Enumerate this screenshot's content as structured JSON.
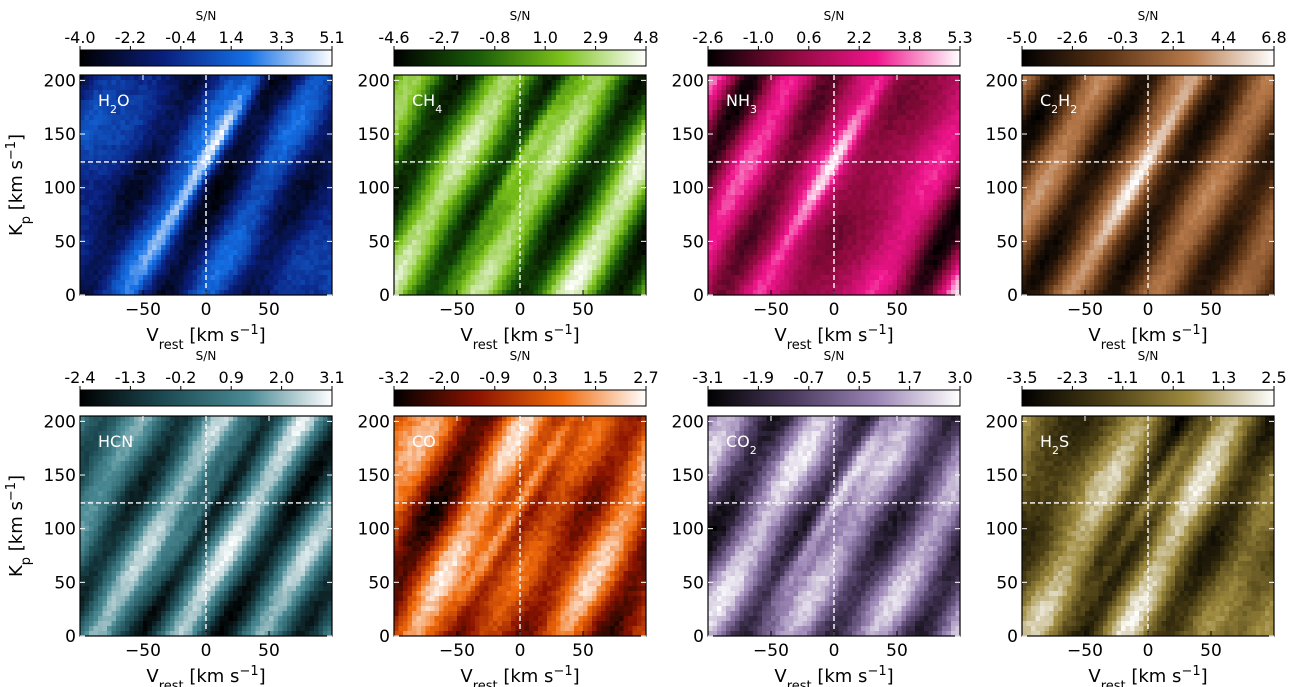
{
  "chart_data": {
    "type": "heatmap",
    "colorbar_label": "S/N",
    "xlabel_main": "V",
    "xlabel_sub": "rest",
    "xlabel_unit": " [km s",
    "xlabel_exp": "−1",
    "xlabel_close": "]",
    "ylabel_main": "K",
    "ylabel_sub": "p",
    "ylabel_unit": " [km s",
    "ylabel_exp": "−1",
    "ylabel_close": "]",
    "xlim": [
      -100,
      100
    ],
    "ylim": [
      0,
      205
    ],
    "xticks": [
      -50,
      0,
      50
    ],
    "xtick_labels": [
      "−50",
      "0",
      "50"
    ],
    "yticks": [
      0,
      50,
      100,
      150,
      200
    ],
    "ytick_labels": [
      "0",
      "50",
      "100",
      "150",
      "200"
    ],
    "expected_position": {
      "v_rest": 0,
      "k_p": 124
    },
    "panels": [
      {
        "species": "H2O",
        "label_parts": [
          [
            "H",
            ""
          ],
          [
            "2",
            "sub"
          ],
          [
            "O",
            ""
          ]
        ],
        "colormap": [
          "#000000",
          "#0a1f7d",
          "#1470e6",
          "#ffffff"
        ],
        "colorbar_ticks": [
          "-4.0",
          "-2.2",
          "-0.4",
          "1.4",
          "3.3",
          "5.1"
        ],
        "vmin": -4.0,
        "vmax": 5.1,
        "peak_sn": 5.1
      },
      {
        "species": "CH4",
        "label_parts": [
          [
            "CH",
            ""
          ],
          [
            "4",
            "sub"
          ]
        ],
        "colormap": [
          "#000000",
          "#1a5c08",
          "#7cc21a",
          "#ffffff"
        ],
        "colorbar_ticks": [
          "-4.6",
          "-2.7",
          "-0.8",
          "1.0",
          "2.9",
          "4.8"
        ],
        "vmin": -4.6,
        "vmax": 4.8,
        "peak_sn": 4.8
      },
      {
        "species": "NH3",
        "label_parts": [
          [
            "NH",
            ""
          ],
          [
            "3",
            "sub"
          ]
        ],
        "colormap": [
          "#000000",
          "#8c0a3c",
          "#f0148c",
          "#ffffff"
        ],
        "colorbar_ticks": [
          "-2.6",
          "-1.0",
          "0.6",
          "2.2",
          "3.8",
          "5.3"
        ],
        "vmin": -2.6,
        "vmax": 5.3,
        "peak_sn": 5.3
      },
      {
        "species": "C2H2",
        "label_parts": [
          [
            "C",
            ""
          ],
          [
            "2",
            "sub"
          ],
          [
            "H",
            ""
          ],
          [
            "2",
            "sub"
          ]
        ],
        "colormap": [
          "#000000",
          "#5a3214",
          "#b87a4a",
          "#ffffff"
        ],
        "colorbar_ticks": [
          "-5.0",
          "-2.6",
          "-0.3",
          "2.1",
          "4.4",
          "6.8"
        ],
        "vmin": -5.0,
        "vmax": 6.8,
        "peak_sn": 6.8
      },
      {
        "species": "HCN",
        "label_parts": [
          [
            "HCN",
            ""
          ]
        ],
        "colormap": [
          "#000000",
          "#1c4a52",
          "#4a8a94",
          "#ffffff"
        ],
        "colorbar_ticks": [
          "-2.4",
          "-1.3",
          "-0.2",
          "0.9",
          "2.0",
          "3.1"
        ],
        "vmin": -2.4,
        "vmax": 3.1,
        "peak_sn": 3.1
      },
      {
        "species": "CO",
        "label_parts": [
          [
            "CO",
            ""
          ]
        ],
        "colormap": [
          "#000000",
          "#8c1400",
          "#f06a0a",
          "#ffffff"
        ],
        "colorbar_ticks": [
          "-3.2",
          "-2.0",
          "-0.9",
          "0.3",
          "1.5",
          "2.7"
        ],
        "vmin": -3.2,
        "vmax": 2.7,
        "peak_sn": 2.7
      },
      {
        "species": "CO2",
        "label_parts": [
          [
            "CO",
            ""
          ],
          [
            "2",
            "sub"
          ]
        ],
        "colormap": [
          "#000000",
          "#4a3a5e",
          "#9a84b4",
          "#ffffff"
        ],
        "colorbar_ticks": [
          "-3.1",
          "-1.9",
          "-0.7",
          "0.5",
          "1.7",
          "3.0"
        ],
        "vmin": -3.1,
        "vmax": 3.0,
        "peak_sn": 3.0
      },
      {
        "species": "H2S",
        "label_parts": [
          [
            "H",
            ""
          ],
          [
            "2",
            "sub"
          ],
          [
            "S",
            ""
          ]
        ],
        "colormap": [
          "#000000",
          "#4a3e14",
          "#a08c40",
          "#ffffff"
        ],
        "colorbar_ticks": [
          "-3.5",
          "-2.3",
          "-1.1",
          "0.1",
          "1.3",
          "2.5"
        ],
        "vmin": -3.5,
        "vmax": 2.5,
        "peak_sn": 2.5
      }
    ]
  }
}
